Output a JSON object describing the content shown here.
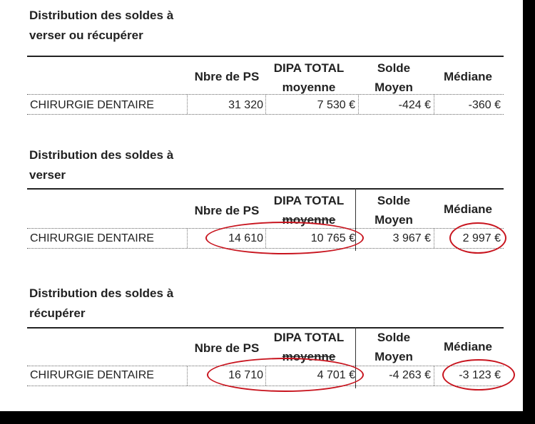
{
  "sections": [
    {
      "title_line1": "Distribution des soldes à",
      "title_line2": "verser ou récupérer",
      "headers": {
        "nbre": "Nbre de PS",
        "dipa_line1": "DIPA TOTAL",
        "dipa_line2": "moyenne",
        "solde_line1": "Solde",
        "solde_line2": "Moyen",
        "mediane": "Médiane"
      },
      "row": {
        "label": "CHIRURGIE DENTAIRE",
        "nbre": "31 320",
        "dipa": "7 530 €",
        "solde": "-424 €",
        "mediane": "-360 €"
      }
    },
    {
      "title_line1": "Distribution des soldes à",
      "title_line2": "verser",
      "headers": {
        "nbre": "Nbre de PS",
        "dipa_line1": "DIPA TOTAL",
        "dipa_line2": "moyenne",
        "solde_line1": "Solde",
        "solde_line2": "Moyen",
        "mediane": "Médiane"
      },
      "row": {
        "label": "CHIRURGIE DENTAIRE",
        "nbre": "14 610",
        "dipa": "10 765 €",
        "solde": "3 967 €",
        "mediane": "2 997 €"
      }
    },
    {
      "title_line1": "Distribution des soldes à",
      "title_line2": "récupérer",
      "headers": {
        "nbre": "Nbre de PS",
        "dipa_line1": "DIPA TOTAL",
        "dipa_line2": "moyenne",
        "solde_line1": "Solde",
        "solde_line2": "Moyen",
        "mediane": "Médiane"
      },
      "row": {
        "label": "CHIRURGIE DENTAIRE",
        "nbre": "16 710",
        "dipa": "4 701 €",
        "solde": "-4 263 €",
        "mediane": "-3 123 €"
      }
    }
  ],
  "annotation_color": "#c8141e"
}
